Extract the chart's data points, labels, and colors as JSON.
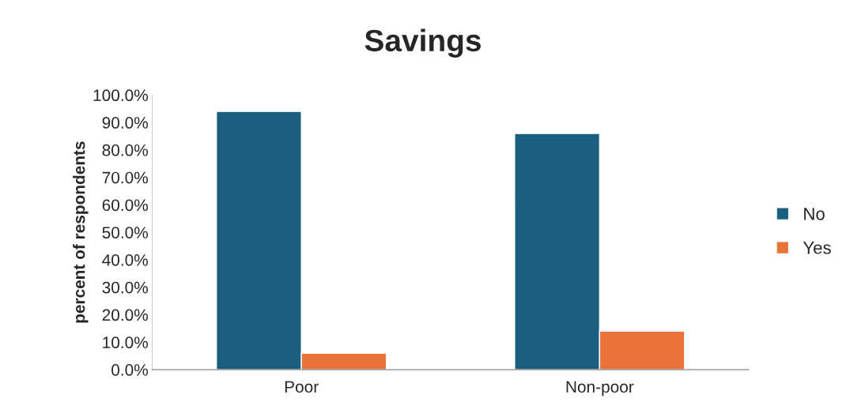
{
  "chart_data": {
    "type": "bar",
    "title": "Savings",
    "ylabel": "percent of respondents",
    "categories": [
      "Poor",
      "Non-poor"
    ],
    "series": [
      {
        "name": "No",
        "color": "#1a5f80",
        "values": [
          94.0,
          86.0
        ]
      },
      {
        "name": "Yes",
        "color": "#e8733a",
        "values": [
          6.0,
          14.0
        ]
      }
    ],
    "ylim": [
      0,
      100
    ],
    "yticks": [
      {
        "value": 0,
        "label": "0.0%"
      },
      {
        "value": 10,
        "label": "10.0%"
      },
      {
        "value": 20,
        "label": "20.0%"
      },
      {
        "value": 30,
        "label": "30.0%"
      },
      {
        "value": 40,
        "label": "40.0%"
      },
      {
        "value": 50,
        "label": "50.0%"
      },
      {
        "value": 60,
        "label": "60.0%"
      },
      {
        "value": 70,
        "label": "70.0%"
      },
      {
        "value": 80,
        "label": "80.0%"
      },
      {
        "value": 90,
        "label": "90.0%"
      },
      {
        "value": 100,
        "label": "100.0%"
      }
    ],
    "grid": false,
    "legend": "right"
  }
}
